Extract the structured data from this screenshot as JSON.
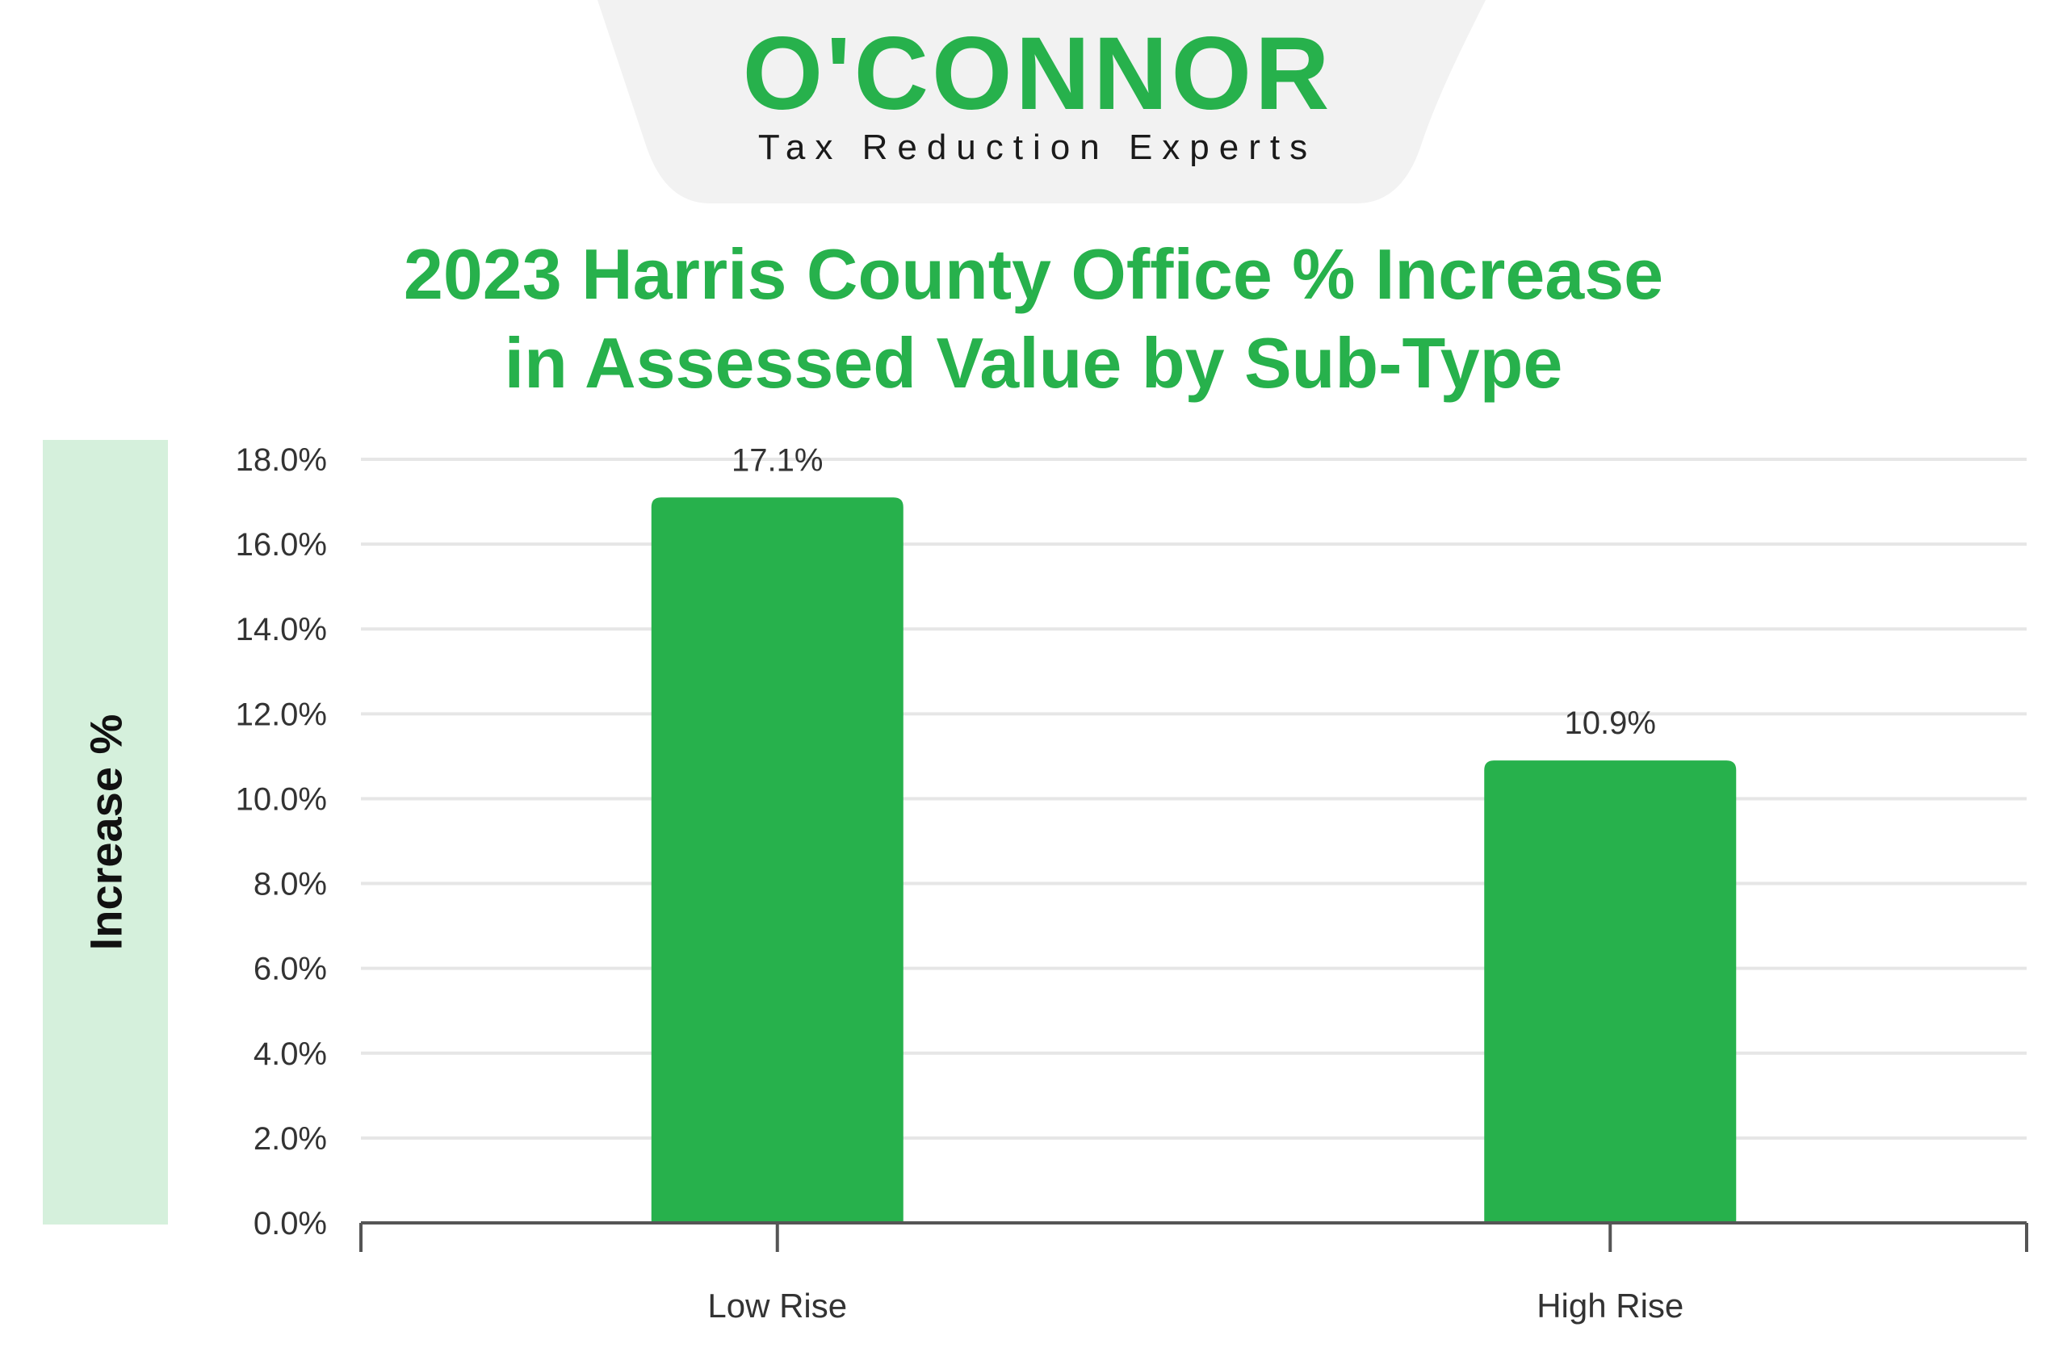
{
  "brand": {
    "name": "O'CONNOR",
    "tagline": "Tax Reduction Experts",
    "color": "#27b14c",
    "header_bg": "#f2f2f2"
  },
  "chart_data": {
    "type": "bar",
    "title_lines": [
      "2023 Harris County Office % Increase",
      "in Assessed Value by Sub-Type"
    ],
    "title": "2023 Harris County Office % Increase in Assessed Value by Sub-Type",
    "xlabel": "",
    "ylabel": "Increase %",
    "categories": [
      "Low Rise",
      "High Rise"
    ],
    "values": [
      17.1,
      10.9
    ],
    "value_labels": [
      "17.1%",
      "10.9%"
    ],
    "ylim": [
      0,
      18
    ],
    "y_ticks": [
      0,
      2,
      4,
      6,
      8,
      10,
      12,
      14,
      16,
      18
    ],
    "y_tick_labels": [
      "0.0%",
      "2.0%",
      "4.0%",
      "6.0%",
      "8.0%",
      "10.0%",
      "12.0%",
      "14.0%",
      "16.0%",
      "18.0%"
    ],
    "grid": true,
    "legend": "none",
    "bar_color": "#27b14c",
    "grid_color": "#e6e6e6",
    "axis_color": "#555555",
    "tick_label_color": "#333333"
  }
}
